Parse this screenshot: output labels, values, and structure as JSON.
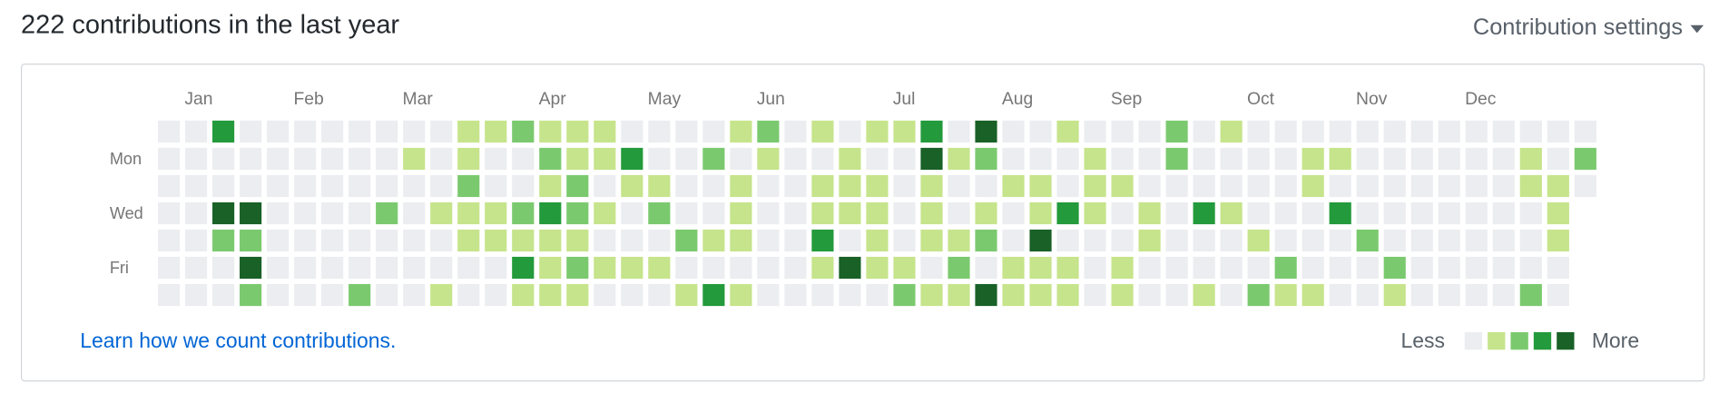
{
  "header": {
    "title": "222 contributions in the last year",
    "settings": "Contribution settings"
  },
  "graph": {
    "months": [
      "Jan",
      "Feb",
      "Mar",
      "Apr",
      "May",
      "Jun",
      "Jul",
      "Aug",
      "Sep",
      "Oct",
      "Nov",
      "Dec"
    ],
    "days": [
      "Mon",
      "Wed",
      "Fri"
    ],
    "colors": [
      "#ebedf0",
      "#c6e48b",
      "#7bc96f",
      "#239a3b",
      "#196127"
    ],
    "weeks": [
      [
        0,
        0,
        0,
        0,
        0,
        0,
        0
      ],
      [
        0,
        0,
        0,
        0,
        0,
        0,
        0
      ],
      [
        3,
        0,
        0,
        4,
        2,
        0,
        0
      ],
      [
        0,
        0,
        0,
        4,
        2,
        4,
        2
      ],
      [
        0,
        0,
        0,
        0,
        0,
        0,
        0
      ],
      [
        0,
        0,
        0,
        0,
        0,
        0,
        0
      ],
      [
        0,
        0,
        0,
        0,
        0,
        0,
        0
      ],
      [
        0,
        0,
        0,
        0,
        0,
        0,
        2
      ],
      [
        0,
        0,
        0,
        2,
        0,
        0,
        0
      ],
      [
        0,
        1,
        0,
        0,
        0,
        0,
        0
      ],
      [
        0,
        0,
        0,
        1,
        0,
        0,
        1
      ],
      [
        1,
        1,
        2,
        1,
        1,
        0,
        0
      ],
      [
        1,
        0,
        0,
        1,
        1,
        0,
        0
      ],
      [
        2,
        0,
        0,
        2,
        1,
        3,
        1
      ],
      [
        1,
        2,
        1,
        3,
        1,
        1,
        1
      ],
      [
        1,
        1,
        2,
        2,
        1,
        2,
        1
      ],
      [
        1,
        1,
        0,
        1,
        0,
        1,
        0
      ],
      [
        0,
        3,
        1,
        0,
        0,
        1,
        0
      ],
      [
        0,
        0,
        1,
        2,
        0,
        1,
        0
      ],
      [
        0,
        0,
        0,
        0,
        2,
        0,
        1
      ],
      [
        0,
        2,
        0,
        0,
        1,
        0,
        3
      ],
      [
        1,
        0,
        1,
        1,
        1,
        0,
        1
      ],
      [
        2,
        1,
        0,
        0,
        0,
        0,
        0
      ],
      [
        0,
        0,
        0,
        0,
        0,
        0,
        0
      ],
      [
        1,
        0,
        1,
        1,
        3,
        1,
        0
      ],
      [
        0,
        1,
        1,
        1,
        0,
        4,
        0
      ],
      [
        1,
        0,
        1,
        1,
        1,
        1,
        0
      ],
      [
        1,
        0,
        0,
        0,
        0,
        1,
        2
      ],
      [
        3,
        4,
        1,
        1,
        1,
        0,
        1
      ],
      [
        0,
        1,
        0,
        0,
        1,
        2,
        1
      ],
      [
        4,
        2,
        0,
        1,
        2,
        0,
        4
      ],
      [
        0,
        0,
        1,
        0,
        0,
        1,
        1
      ],
      [
        0,
        0,
        1,
        1,
        4,
        1,
        1
      ],
      [
        1,
        0,
        0,
        3,
        0,
        1,
        1
      ],
      [
        0,
        1,
        1,
        1,
        0,
        0,
        0
      ],
      [
        0,
        0,
        1,
        0,
        0,
        1,
        1
      ],
      [
        0,
        0,
        0,
        1,
        1,
        0,
        0
      ],
      [
        2,
        2,
        0,
        0,
        0,
        0,
        0
      ],
      [
        0,
        0,
        0,
        3,
        0,
        0,
        1
      ],
      [
        1,
        0,
        0,
        1,
        0,
        0,
        0
      ],
      [
        0,
        0,
        0,
        0,
        1,
        0,
        2
      ],
      [
        0,
        0,
        0,
        0,
        0,
        2,
        1
      ],
      [
        0,
        1,
        1,
        0,
        0,
        0,
        1
      ],
      [
        0,
        1,
        0,
        3,
        0,
        0,
        0
      ],
      [
        0,
        0,
        0,
        0,
        2,
        0,
        0
      ],
      [
        0,
        0,
        0,
        0,
        0,
        2,
        1
      ],
      [
        0,
        0,
        0,
        0,
        0,
        0,
        0
      ],
      [
        0,
        0,
        0,
        0,
        0,
        0,
        0
      ],
      [
        0,
        0,
        0,
        0,
        0,
        0,
        0
      ],
      [
        0,
        0,
        0,
        0,
        0,
        0,
        0
      ],
      [
        0,
        1,
        1,
        0,
        0,
        0,
        2
      ],
      [
        0,
        0,
        1,
        1,
        1,
        0,
        0
      ],
      [
        0,
        2,
        0
      ]
    ]
  },
  "footer": {
    "link": "Learn how we count contributions.",
    "less": "Less",
    "more": "More"
  }
}
